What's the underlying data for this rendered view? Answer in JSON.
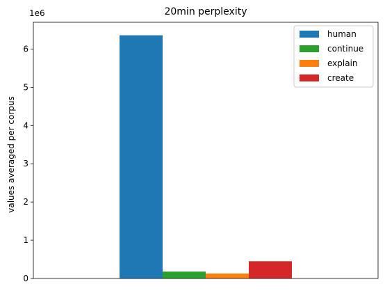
{
  "chart_data": {
    "type": "bar",
    "title": "20min perplexity",
    "ylabel": "values averaged per corpus",
    "xlabel": "",
    "y_multiplier_label": "1e6",
    "ylim": [
      0,
      6700000
    ],
    "yticks": [
      0,
      1000000,
      2000000,
      3000000,
      4000000,
      5000000,
      6000000
    ],
    "ytick_labels": [
      "0",
      "1",
      "2",
      "3",
      "4",
      "5",
      "6"
    ],
    "grid": false,
    "legend_position": "top-right",
    "series": [
      {
        "name": "human",
        "value": 6360000,
        "color": "#1f77b4"
      },
      {
        "name": "continue",
        "value": 180000,
        "color": "#2ca02c"
      },
      {
        "name": "explain",
        "value": 130000,
        "color": "#ff7f0e"
      },
      {
        "name": "create",
        "value": 450000,
        "color": "#d62728"
      }
    ]
  }
}
